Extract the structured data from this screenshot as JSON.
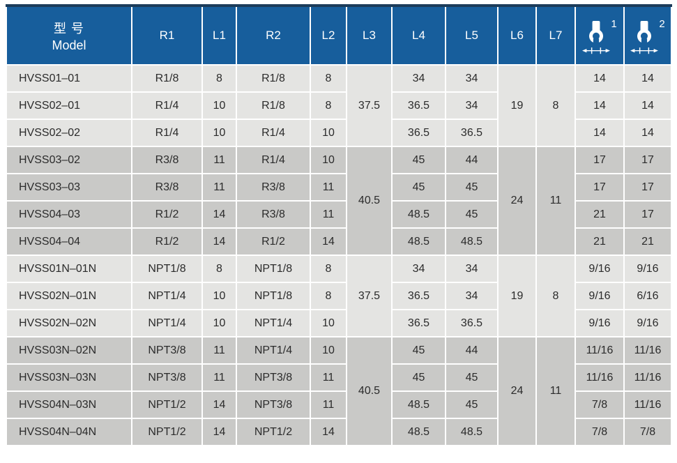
{
  "colors": {
    "header_blue": "#175e9c",
    "header_top_strip": "#1c3c5a",
    "row_light": "#e4e4e2",
    "row_dark": "#c9c9c7",
    "cell_text": "#2b2b2b",
    "header_text": "#ffffff",
    "divider": "#ffffff"
  },
  "table": {
    "header": {
      "model_zh": "型 号",
      "model_en": "Model",
      "columns": [
        "R1",
        "L1",
        "R2",
        "L2",
        "L3",
        "L4",
        "L5",
        "L6",
        "L7"
      ],
      "wrench1": {
        "icon": "wrench-width-icon",
        "sup": "1"
      },
      "wrench2": {
        "icon": "wrench-width-icon",
        "sup": "2"
      }
    },
    "groups": [
      {
        "shade": "light",
        "l3": "37.5",
        "l6": "19",
        "l7": "8",
        "rows": [
          {
            "model": "HVSS01–01",
            "r1": "R1/8",
            "l1": "8",
            "r2": "R1/8",
            "l2": "8",
            "l4": "34",
            "l5": "34",
            "s1": "14",
            "s2": "14"
          },
          {
            "model": "HVSS02–01",
            "r1": "R1/4",
            "l1": "10",
            "r2": "R1/8",
            "l2": "8",
            "l4": "36.5",
            "l5": "34",
            "s1": "14",
            "s2": "14"
          },
          {
            "model": "HVSS02–02",
            "r1": "R1/4",
            "l1": "10",
            "r2": "R1/4",
            "l2": "10",
            "l4": "36.5",
            "l5": "36.5",
            "s1": "14",
            "s2": "14"
          }
        ]
      },
      {
        "shade": "dark",
        "l3": "40.5",
        "l6": "24",
        "l7": "11",
        "rows": [
          {
            "model": "HVSS03–02",
            "r1": "R3/8",
            "l1": "11",
            "r2": "R1/4",
            "l2": "10",
            "l4": "45",
            "l5": "44",
            "s1": "17",
            "s2": "17"
          },
          {
            "model": "HVSS03–03",
            "r1": "R3/8",
            "l1": "11",
            "r2": "R3/8",
            "l2": "11",
            "l4": "45",
            "l5": "45",
            "s1": "17",
            "s2": "17"
          },
          {
            "model": "HVSS04–03",
            "r1": "R1/2",
            "l1": "14",
            "r2": "R3/8",
            "l2": "11",
            "l4": "48.5",
            "l5": "45",
            "s1": "21",
            "s2": "17"
          },
          {
            "model": "HVSS04–04",
            "r1": "R1/2",
            "l1": "14",
            "r2": "R1/2",
            "l2": "14",
            "l4": "48.5",
            "l5": "48.5",
            "s1": "21",
            "s2": "21"
          }
        ]
      },
      {
        "shade": "light",
        "l3": "37.5",
        "l6": "19",
        "l7": "8",
        "rows": [
          {
            "model": "HVSS01N–01N",
            "r1": "NPT1/8",
            "l1": "8",
            "r2": "NPT1/8",
            "l2": "8",
            "l4": "34",
            "l5": "34",
            "s1": "9/16",
            "s2": "9/16"
          },
          {
            "model": "HVSS02N–01N",
            "r1": "NPT1/4",
            "l1": "10",
            "r2": "NPT1/8",
            "l2": "8",
            "l4": "36.5",
            "l5": "34",
            "s1": "9/16",
            "s2": "6/16"
          },
          {
            "model": "HVSS02N–02N",
            "r1": "NPT1/4",
            "l1": "10",
            "r2": "NPT1/4",
            "l2": "10",
            "l4": "36.5",
            "l5": "36.5",
            "s1": "9/16",
            "s2": "9/16"
          }
        ]
      },
      {
        "shade": "dark",
        "l3": "40.5",
        "l6": "24",
        "l7": "11",
        "rows": [
          {
            "model": "HVSS03N–02N",
            "r1": "NPT3/8",
            "l1": "11",
            "r2": "NPT1/4",
            "l2": "10",
            "l4": "45",
            "l5": "44",
            "s1": "11/16",
            "s2": "11/16"
          },
          {
            "model": "HVSS03N–03N",
            "r1": "NPT3/8",
            "l1": "11",
            "r2": "NPT3/8",
            "l2": "11",
            "l4": "45",
            "l5": "45",
            "s1": "11/16",
            "s2": "11/16"
          },
          {
            "model": "HVSS04N–03N",
            "r1": "NPT1/2",
            "l1": "14",
            "r2": "NPT3/8",
            "l2": "11",
            "l4": "48.5",
            "l5": "45",
            "s1": "7/8",
            "s2": "11/16"
          },
          {
            "model": "HVSS04N–04N",
            "r1": "NPT1/2",
            "l1": "14",
            "r2": "NPT1/2",
            "l2": "14",
            "l4": "48.5",
            "l5": "48.5",
            "s1": "7/8",
            "s2": "7/8"
          }
        ]
      }
    ]
  }
}
